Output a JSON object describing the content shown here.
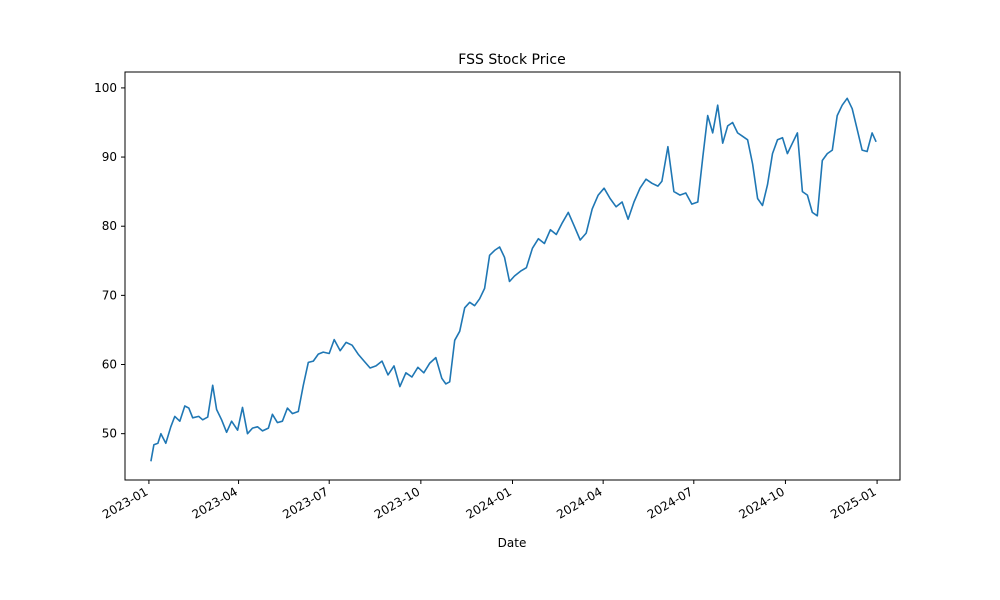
{
  "chart_data": {
    "type": "line",
    "title": "FSS Stock Price",
    "xlabel": "Date",
    "ylabel": "",
    "x_ticks": [
      "2023-01",
      "2023-04",
      "2023-07",
      "2023-10",
      "2024-01",
      "2024-04",
      "2024-07",
      "2024-10",
      "2025-01"
    ],
    "y_ticks": [
      50,
      60,
      70,
      80,
      90,
      100
    ],
    "xlim": [
      "2022-12-08",
      "2025-01-24"
    ],
    "ylim": [
      43.3,
      102.3
    ],
    "grid": false,
    "legend": "none",
    "color": "#1f77b4",
    "series": [
      {
        "x": [
          "2023-01-03",
          "2023-01-06",
          "2023-01-10",
          "2023-01-13",
          "2023-01-18",
          "2023-01-23",
          "2023-01-27",
          "2023-02-01",
          "2023-02-06",
          "2023-02-10",
          "2023-02-14",
          "2023-02-20",
          "2023-02-24",
          "2023-03-01",
          "2023-03-06",
          "2023-03-10",
          "2023-03-15",
          "2023-03-20",
          "2023-03-25",
          "2023-03-31",
          "2023-04-05",
          "2023-04-10",
          "2023-04-15",
          "2023-04-20",
          "2023-04-25",
          "2023-05-01",
          "2023-05-05",
          "2023-05-10",
          "2023-05-15",
          "2023-05-20",
          "2023-05-25",
          "2023-05-31",
          "2023-06-05",
          "2023-06-10",
          "2023-06-15",
          "2023-06-20",
          "2023-06-25",
          "2023-07-01",
          "2023-07-06",
          "2023-07-12",
          "2023-07-18",
          "2023-07-24",
          "2023-07-30",
          "2023-08-05",
          "2023-08-11",
          "2023-08-17",
          "2023-08-23",
          "2023-08-29",
          "2023-09-04",
          "2023-09-10",
          "2023-09-16",
          "2023-09-22",
          "2023-09-28",
          "2023-10-04",
          "2023-10-10",
          "2023-10-16",
          "2023-10-22",
          "2023-10-26",
          "2023-10-30",
          "2023-11-04",
          "2023-11-09",
          "2023-11-14",
          "2023-11-19",
          "2023-11-24",
          "2023-11-29",
          "2023-12-04",
          "2023-12-09",
          "2023-12-14",
          "2023-12-19",
          "2023-12-24",
          "2023-12-29",
          "2024-01-03",
          "2024-01-09",
          "2024-01-15",
          "2024-01-21",
          "2024-01-27",
          "2024-02-02",
          "2024-02-08",
          "2024-02-14",
          "2024-02-20",
          "2024-02-26",
          "2024-03-03",
          "2024-03-09",
          "2024-03-15",
          "2024-03-21",
          "2024-03-27",
          "2024-04-02",
          "2024-04-08",
          "2024-04-14",
          "2024-04-20",
          "2024-04-26",
          "2024-05-02",
          "2024-05-08",
          "2024-05-14",
          "2024-05-20",
          "2024-05-26",
          "2024-05-30",
          "2024-06-05",
          "2024-06-11",
          "2024-06-17",
          "2024-06-23",
          "2024-06-29",
          "2024-07-05",
          "2024-07-10",
          "2024-07-15",
          "2024-07-20",
          "2024-07-25",
          "2024-07-30",
          "2024-08-04",
          "2024-08-09",
          "2024-08-14",
          "2024-08-19",
          "2024-08-24",
          "2024-08-29",
          "2024-09-03",
          "2024-09-08",
          "2024-09-13",
          "2024-09-18",
          "2024-09-23",
          "2024-09-28",
          "2024-10-03",
          "2024-10-08",
          "2024-10-13",
          "2024-10-18",
          "2024-10-23",
          "2024-10-28",
          "2024-11-02",
          "2024-11-07",
          "2024-11-12",
          "2024-11-17",
          "2024-11-22",
          "2024-11-27",
          "2024-12-02",
          "2024-12-07",
          "2024-12-12",
          "2024-12-17",
          "2024-12-22",
          "2024-12-27",
          "2024-12-31"
        ],
        "y": [
          46.0,
          48.4,
          48.6,
          50.0,
          48.6,
          51.0,
          52.5,
          51.8,
          54.0,
          53.7,
          52.3,
          52.5,
          52.0,
          52.4,
          57.0,
          53.5,
          52.0,
          50.2,
          51.8,
          50.5,
          53.8,
          50.0,
          50.8,
          51.0,
          50.4,
          50.8,
          52.8,
          51.6,
          51.8,
          53.7,
          52.9,
          53.2,
          57.0,
          60.3,
          60.5,
          61.5,
          61.8,
          61.6,
          63.6,
          62.0,
          63.2,
          62.8,
          61.5,
          60.5,
          59.5,
          59.8,
          60.5,
          58.5,
          59.8,
          56.8,
          58.8,
          58.2,
          59.6,
          58.8,
          60.2,
          61.0,
          58.0,
          57.2,
          57.5,
          63.5,
          64.8,
          68.2,
          69.0,
          68.5,
          69.5,
          71.0,
          75.8,
          76.5,
          77.0,
          75.5,
          72.0,
          72.8,
          73.5,
          74.0,
          76.8,
          78.2,
          77.5,
          79.5,
          78.8,
          80.5,
          82.0,
          80.0,
          78.0,
          79.0,
          82.5,
          84.5,
          85.5,
          84.0,
          82.8,
          83.5,
          81.0,
          83.5,
          85.5,
          86.8,
          86.2,
          85.8,
          86.5,
          91.5,
          85.0,
          84.5,
          84.8,
          83.2,
          83.5,
          90.0,
          96.0,
          93.5,
          97.5,
          92.0,
          94.5,
          95.0,
          93.5,
          93.0,
          92.5,
          89.0,
          84.0,
          83.0,
          86.0,
          90.5,
          92.5,
          92.8,
          90.5,
          92.0,
          93.5,
          85.0,
          84.5,
          82.0,
          81.5,
          89.5,
          90.5,
          91.0,
          96.0,
          97.5,
          98.5,
          97.0,
          94.0,
          91.0,
          90.8,
          93.5,
          92.2
        ]
      }
    ]
  }
}
